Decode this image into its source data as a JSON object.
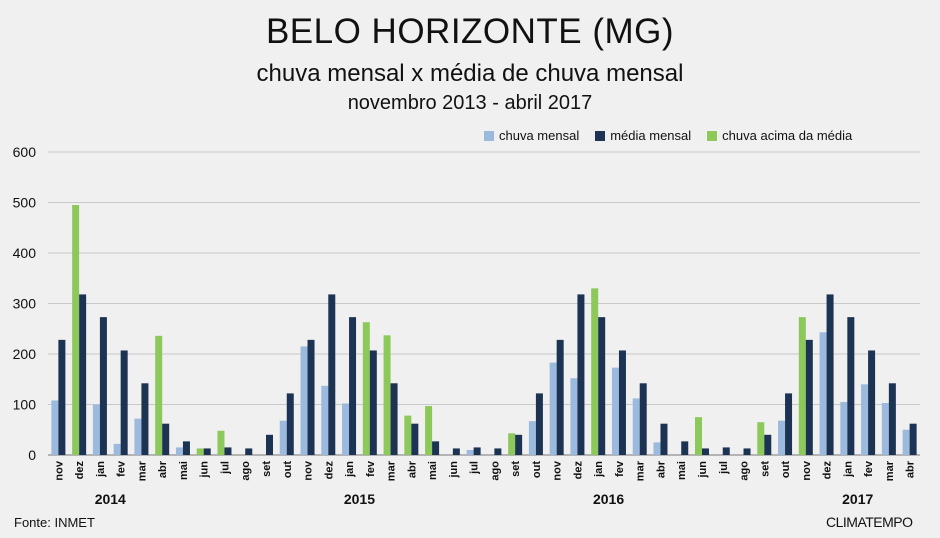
{
  "header": {
    "title": "BELO HORIZONTE (MG)",
    "subtitle": "chuva mensal x média de chuva mensal",
    "period": "novembro 2013 - abril 2017"
  },
  "footer": {
    "source": "Fonte: INMET",
    "brand": "CLIMATEMPO"
  },
  "colors": {
    "chuva_mensal": "#9cb9de",
    "media_mensal": "#1c3353",
    "chuva_acima": "#8dc95a"
  },
  "chart_data": {
    "type": "bar",
    "ylim": [
      0,
      600
    ],
    "yticks": [
      0,
      100,
      200,
      300,
      400,
      500,
      600
    ],
    "grid": true,
    "legend_position": "top-right",
    "categories": [
      "nov",
      "dez",
      "jan",
      "fev",
      "mar",
      "abr",
      "mai",
      "jun",
      "jul",
      "ago",
      "set",
      "out",
      "nov",
      "dez",
      "jan",
      "fev",
      "mar",
      "abr",
      "mai",
      "jun",
      "jul",
      "ago",
      "set",
      "out",
      "nov",
      "dez",
      "jan",
      "fev",
      "mar",
      "abr",
      "mai",
      "jun",
      "jul",
      "ago",
      "set",
      "out",
      "nov",
      "dez",
      "jan",
      "fev",
      "mar",
      "abr"
    ],
    "year_labels": [
      {
        "label": "2014",
        "category_index": 2.5
      },
      {
        "label": "2015",
        "category_index": 14.5
      },
      {
        "label": "2016",
        "category_index": 26.5
      },
      {
        "label": "2017",
        "category_index": 38.5
      }
    ],
    "series": [
      {
        "name": "chuva mensal",
        "values": [
          108,
          0,
          100,
          22,
          72,
          0,
          15,
          10,
          0,
          0,
          0,
          68,
          215,
          137,
          102,
          0,
          0,
          0,
          0,
          0,
          10,
          0,
          0,
          67,
          183,
          152,
          0,
          173,
          112,
          25,
          0,
          0,
          0,
          0,
          0,
          68,
          0,
          243,
          105,
          140,
          103,
          50
        ]
      },
      {
        "name": "média mensal",
        "values": [
          228,
          318,
          273,
          207,
          142,
          62,
          27,
          13,
          15,
          13,
          40,
          122,
          228,
          318,
          273,
          207,
          142,
          62,
          27,
          13,
          15,
          13,
          40,
          122,
          228,
          318,
          273,
          207,
          142,
          62,
          27,
          13,
          15,
          13,
          40,
          122,
          228,
          318,
          273,
          207,
          142,
          62
        ]
      },
      {
        "name": "chuva acima da média",
        "values": [
          0,
          495,
          0,
          0,
          0,
          236,
          0,
          13,
          48,
          0,
          0,
          0,
          0,
          0,
          0,
          263,
          237,
          78,
          97,
          0,
          0,
          0,
          43,
          0,
          0,
          0,
          330,
          0,
          0,
          0,
          0,
          75,
          0,
          0,
          65,
          0,
          273,
          0,
          0,
          0,
          0,
          0
        ]
      }
    ]
  }
}
